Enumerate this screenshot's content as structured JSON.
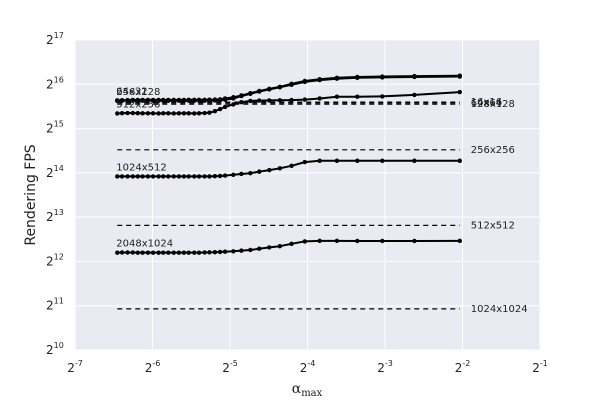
{
  "chart_data": {
    "type": "line",
    "xlabel": "α",
    "xlabel_sub": "max",
    "ylabel": "Rendering FPS",
    "x_scale": "log2",
    "y_scale": "log2",
    "xlim": [
      0.0078125,
      0.5
    ],
    "ylim": [
      1024,
      131072
    ],
    "x_ticks": [
      0.0078125,
      0.015625,
      0.03125,
      0.0625,
      0.125,
      0.25,
      0.5
    ],
    "x_tick_labels": [
      {
        "base": "2",
        "exp": "-7"
      },
      {
        "base": "2",
        "exp": "-6"
      },
      {
        "base": "2",
        "exp": "-5"
      },
      {
        "base": "2",
        "exp": "-4"
      },
      {
        "base": "2",
        "exp": "-3"
      },
      {
        "base": "2",
        "exp": "-2"
      },
      {
        "base": "2",
        "exp": "-1"
      }
    ],
    "y_ticks": [
      1024,
      2048,
      4096,
      8192,
      16384,
      32768,
      65536,
      131072
    ],
    "y_tick_labels": [
      {
        "base": "2",
        "exp": "10"
      },
      {
        "base": "2",
        "exp": "11"
      },
      {
        "base": "2",
        "exp": "12"
      },
      {
        "base": "2",
        "exp": "13"
      },
      {
        "base": "2",
        "exp": "14"
      },
      {
        "base": "2",
        "exp": "15"
      },
      {
        "base": "2",
        "exp": "16"
      },
      {
        "base": "2",
        "exp": "17"
      }
    ],
    "grid": true,
    "colors": {
      "background": "#eaeaf2",
      "grid": "#ffffff",
      "line": "#000000"
    },
    "x": [
      0.0114,
      0.0119,
      0.0125,
      0.0131,
      0.0137,
      0.0143,
      0.015,
      0.0157,
      0.0165,
      0.0172,
      0.018,
      0.0189,
      0.0198,
      0.0207,
      0.0216,
      0.0227,
      0.0237,
      0.0249,
      0.026,
      0.0273,
      0.0286,
      0.0299,
      0.0322,
      0.0346,
      0.0375,
      0.0406,
      0.0444,
      0.0488,
      0.0542,
      0.061,
      0.0697,
      0.0813,
      0.0976,
      0.122,
      0.1626,
      0.244
    ],
    "series": [
      {
        "name": "64x32",
        "values": [
          51000,
          51100,
          51200,
          51300,
          51300,
          51300,
          51300,
          51300,
          51300,
          51300,
          51300,
          51300,
          51300,
          51300,
          51400,
          51400,
          51400,
          51400,
          51500,
          51600,
          51800,
          52500,
          53500,
          55000,
          57000,
          59000,
          61000,
          63000,
          66000,
          69000,
          71000,
          72500,
          73500,
          74000,
          74500,
          75000
        ]
      },
      {
        "name": "256x128",
        "values": [
          50500,
          50600,
          50600,
          50700,
          50700,
          50700,
          50700,
          50700,
          50700,
          50700,
          50700,
          50700,
          50700,
          50700,
          50700,
          50700,
          50700,
          50700,
          50800,
          50900,
          51000,
          51500,
          52500,
          54500,
          56500,
          58500,
          60500,
          62500,
          65000,
          68000,
          70000,
          71500,
          72500,
          73000,
          73500,
          74000
        ]
      },
      {
        "name": "512x256",
        "values": [
          41500,
          41700,
          41800,
          41800,
          41700,
          41600,
          41600,
          41600,
          41500,
          41600,
          41600,
          41500,
          41600,
          41600,
          41600,
          41500,
          41600,
          41800,
          42000,
          43000,
          44500,
          46000,
          47800,
          49500,
          50500,
          50800,
          50900,
          51000,
          51200,
          51600,
          52500,
          54000,
          54000,
          54200,
          55500,
          58000
        ]
      },
      {
        "name": "1024x512",
        "values": [
          15500,
          15500,
          15500,
          15500,
          15500,
          15500,
          15500,
          15500,
          15500,
          15500,
          15500,
          15500,
          15500,
          15500,
          15500,
          15500,
          15500,
          15500,
          15500,
          15550,
          15600,
          15700,
          15900,
          16100,
          16300,
          16700,
          17100,
          17600,
          18300,
          19400,
          19800,
          19800,
          19800,
          19800,
          19800,
          19800
        ]
      },
      {
        "name": "2048x1024",
        "values": [
          4700,
          4710,
          4710,
          4710,
          4700,
          4700,
          4700,
          4700,
          4700,
          4700,
          4700,
          4700,
          4700,
          4700,
          4700,
          4700,
          4700,
          4710,
          4720,
          4730,
          4750,
          4770,
          4800,
          4850,
          4900,
          5000,
          5100,
          5200,
          5400,
          5600,
          5650,
          5650,
          5640,
          5640,
          5640,
          5650
        ]
      }
    ],
    "reference_lines": [
      {
        "name": "16x16",
        "value": 49600
      },
      {
        "name": "64x64",
        "value": 49000
      },
      {
        "name": "128x128",
        "value": 48000
      },
      {
        "name": "256x256",
        "value": 23500
      },
      {
        "name": "512x512",
        "value": 7200
      },
      {
        "name": "1024x1024",
        "value": 1950
      }
    ]
  }
}
